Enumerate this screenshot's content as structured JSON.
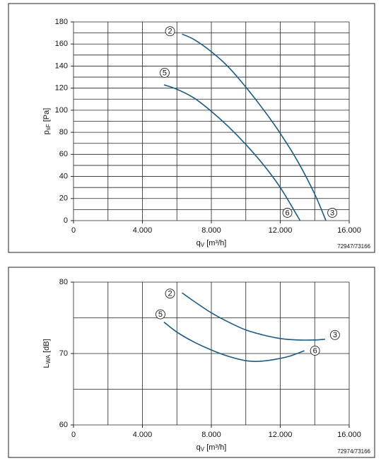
{
  "chart_data": [
    {
      "type": "line",
      "x_label": {
        "symbol": "q",
        "subscript": "V",
        "unit": " [m³/h]"
      },
      "y_label": {
        "symbol": "p",
        "subscript": "sF",
        "unit": " [Pa]"
      },
      "code": "72947/73166",
      "xlim": [
        0,
        16000
      ],
      "xticks": [
        0,
        {
          "value": 4000,
          "label": "4.000"
        },
        {
          "value": 8000,
          "label": "8.000"
        },
        {
          "value": 12000,
          "label": "12.000"
        },
        {
          "value": 16000,
          "label": "16.000"
        }
      ],
      "minor_xticks": [
        2000,
        6000,
        10000,
        14000
      ],
      "ylim": [
        0,
        180
      ],
      "yticks": [
        0,
        20,
        40,
        60,
        80,
        100,
        120,
        140,
        160,
        180
      ],
      "minor_yticks": [
        10,
        30,
        50,
        70,
        90,
        110,
        130,
        150,
        170
      ],
      "grid": true,
      "series": [
        {
          "color": "#1d5a82",
          "start_label": "2",
          "end_label": "3",
          "x": [
            6300,
            7000,
            8000,
            9000,
            10000,
            11000,
            12000,
            13000,
            14000,
            14650
          ],
          "values": [
            169,
            164,
            153,
            139,
            121,
            101,
            79,
            54,
            24,
            0
          ]
        },
        {
          "color": "#1d5a82",
          "start_label": "5",
          "end_label": "6",
          "x": [
            5250,
            6000,
            7000,
            8000,
            9000,
            10000,
            11000,
            12000,
            13000,
            13150
          ],
          "values": [
            123,
            119,
            111,
            99,
            85,
            69,
            51,
            30,
            4,
            0
          ]
        }
      ]
    },
    {
      "type": "line",
      "x_label": {
        "symbol": "q",
        "subscript": "V",
        "unit": " [m³/h]"
      },
      "y_label": {
        "symbol": "L",
        "subscript": "WA",
        "unit": " [dB]"
      },
      "code": "72974/73166",
      "xlim": [
        0,
        16000
      ],
      "xticks": [
        0,
        {
          "value": 4000,
          "label": "4.000"
        },
        {
          "value": 8000,
          "label": "8.000"
        },
        {
          "value": 12000,
          "label": "12.000"
        },
        {
          "value": 16000,
          "label": "16.000"
        }
      ],
      "minor_xticks": [
        2000,
        6000,
        10000,
        14000
      ],
      "ylim": [
        60,
        80
      ],
      "yticks": [
        60,
        70,
        80
      ],
      "minor_yticks": [
        65,
        75
      ],
      "grid": true,
      "series": [
        {
          "color": "#1d5a82",
          "start_label": "2",
          "end_label": "3",
          "x": [
            6300,
            7000,
            8000,
            9000,
            10000,
            11000,
            12000,
            13000,
            14000,
            14600
          ],
          "values": [
            78.5,
            77.3,
            75.7,
            74.4,
            73.3,
            72.6,
            72.1,
            71.9,
            71.9,
            72.0
          ]
        },
        {
          "color": "#1d5a82",
          "start_label": "5",
          "end_label": "6",
          "x": [
            5250,
            6000,
            7000,
            8000,
            9000,
            10000,
            10700,
            11500,
            12500,
            13400
          ],
          "values": [
            74.4,
            73.0,
            71.6,
            70.5,
            69.6,
            69.0,
            68.9,
            69.1,
            69.6,
            70.4
          ]
        }
      ]
    }
  ]
}
